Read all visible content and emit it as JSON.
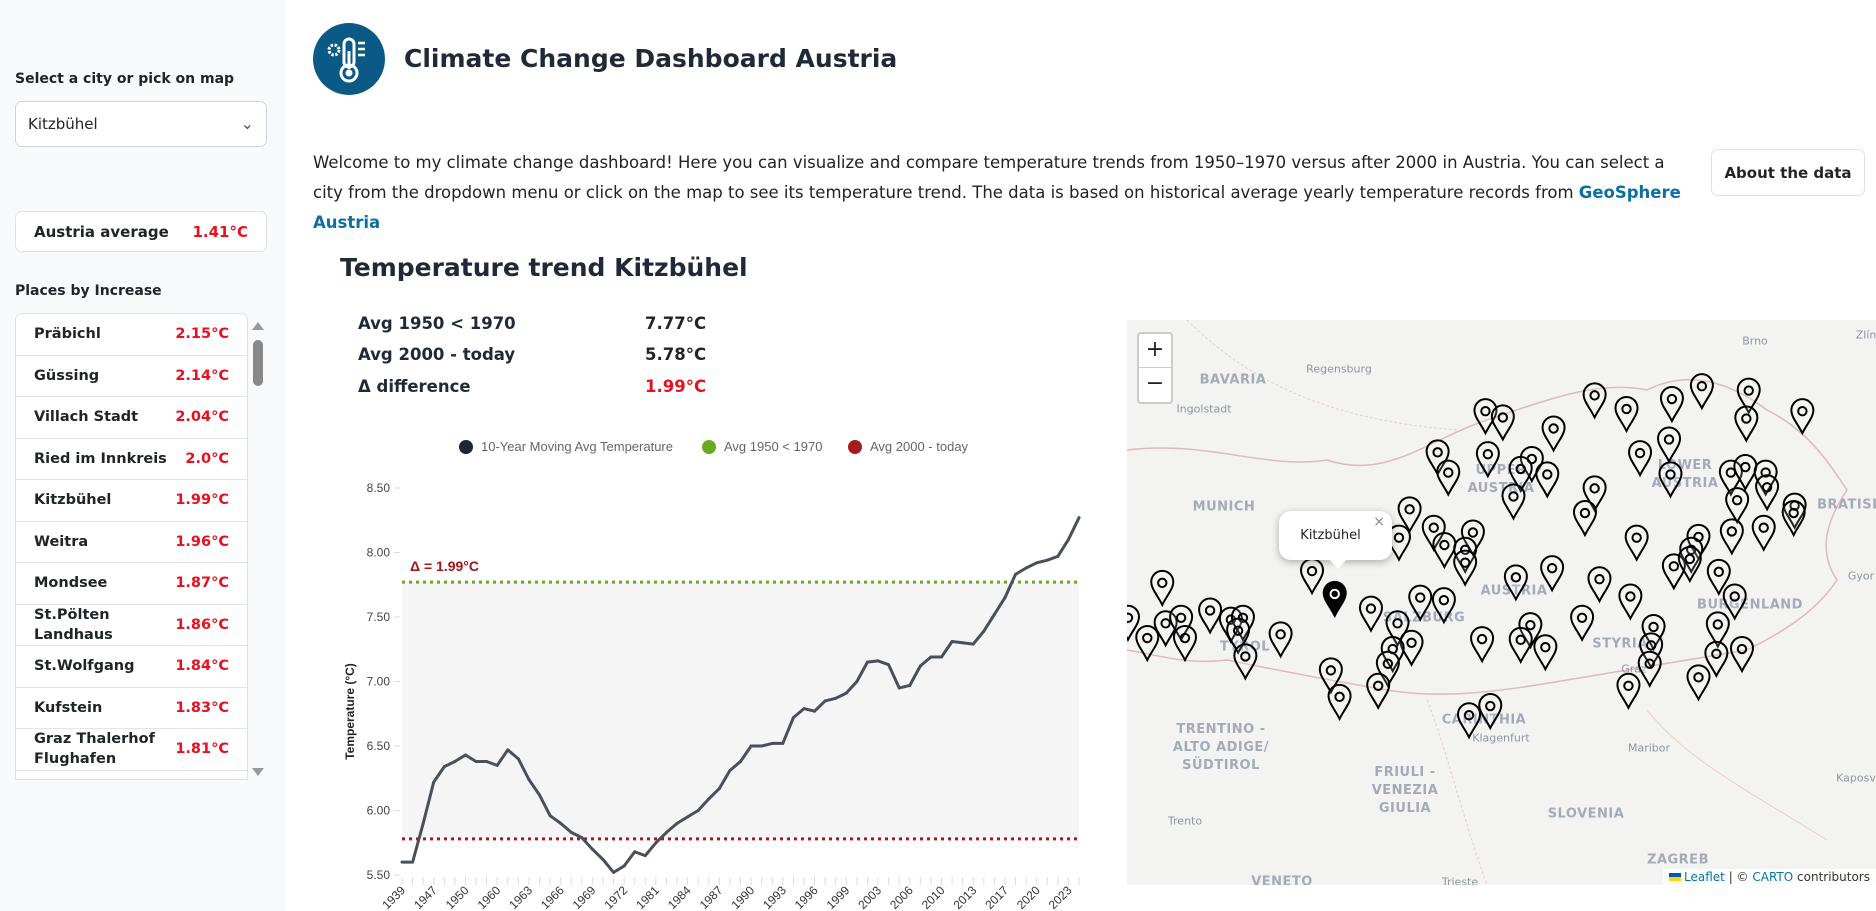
{
  "sidebar": {
    "select_label": "Select a city or pick on map",
    "selected_city": "Kitzbühel",
    "austria_avg_label": "Austria average",
    "austria_avg_value": "1.41°C",
    "places_title": "Places by Increase",
    "places": [
      {
        "name": "Präbichl",
        "value": "2.15°C"
      },
      {
        "name": "Güssing",
        "value": "2.14°C"
      },
      {
        "name": "Villach Stadt",
        "value": "2.04°C"
      },
      {
        "name": "Ried im Innkreis",
        "value": "2.0°C"
      },
      {
        "name": "Kitzbühel",
        "value": "1.99°C"
      },
      {
        "name": "Weitra",
        "value": "1.96°C"
      },
      {
        "name": "Mondsee",
        "value": "1.87°C"
      },
      {
        "name": "St.Pölten Landhaus",
        "value": "1.86°C"
      },
      {
        "name": "St.Wolfgang",
        "value": "1.84°C"
      },
      {
        "name": "Kufstein",
        "value": "1.83°C"
      },
      {
        "name": "Graz Thalerhof Flughafen",
        "value": "1.81°C"
      }
    ]
  },
  "header": {
    "title": "Climate Change Dashboard Austria",
    "description": "Welcome to my climate change dashboard! Here you can visualize and compare temperature trends from 1950–1970 versus after 2000 in Austria. You can select a city from the dropdown menu or click on the map to see its temperature trend. The data is based on historical average yearly temperature records from ",
    "link_text": "GeoSphere Austria",
    "about_button": "About the data",
    "logo_icon": "thermometer-gear-icon",
    "brand_color": "#0b5a85"
  },
  "trend": {
    "title": "Temperature trend Kitzbühel",
    "stats": [
      {
        "label": "Avg 1950 < 1970",
        "value": "7.77°C"
      },
      {
        "label": "Avg 2000 - today",
        "value": "5.78°C"
      },
      {
        "label": "Δ difference",
        "value": "1.99°C"
      }
    ]
  },
  "chart_data": {
    "type": "line",
    "title": "",
    "xlabel": "",
    "ylabel": "Temperature (°C)",
    "ylim": [
      5.5,
      8.5
    ],
    "y_ticks": [
      "5.50",
      "6.00",
      "6.50",
      "7.00",
      "7.50",
      "8.00",
      "8.50"
    ],
    "x_tick_labels": [
      "1939",
      "1947",
      "1950",
      "1960",
      "1963",
      "1966",
      "1969",
      "1972",
      "1981",
      "1984",
      "1987",
      "1990",
      "1993",
      "1996",
      "1999",
      "2003",
      "2006",
      "2010",
      "2013",
      "2017",
      "2020",
      "2023"
    ],
    "legend_position": "top",
    "annotation": "Δ = 1.99°C",
    "series": [
      {
        "name": "10-Year Moving Avg Temperature",
        "color": "#1f2633",
        "x": [
          1939,
          1945,
          1946,
          1947,
          1948,
          1949,
          1950,
          1958,
          1959,
          1960,
          1961,
          1962,
          1963,
          1964,
          1965,
          1966,
          1967,
          1968,
          1969,
          1970,
          1971,
          1972,
          1979,
          1980,
          1981,
          1982,
          1983,
          1984,
          1985,
          1986,
          1987,
          1988,
          1989,
          1990,
          1991,
          1992,
          1993,
          1994,
          1995,
          1996,
          1997,
          1998,
          1999,
          2001,
          2002,
          2003,
          2004,
          2005,
          2006,
          2008,
          2009,
          2010,
          2011,
          2012,
          2013,
          2015,
          2016,
          2017,
          2018,
          2019,
          2020,
          2021,
          2022,
          2023,
          2024
        ],
        "values": [
          5.6,
          5.6,
          5.9,
          6.22,
          6.34,
          6.38,
          6.43,
          6.38,
          6.38,
          6.35,
          6.47,
          6.4,
          6.24,
          6.12,
          5.96,
          5.9,
          5.83,
          5.79,
          5.7,
          5.62,
          5.52,
          5.57,
          5.68,
          5.65,
          5.75,
          5.83,
          5.9,
          5.95,
          6.0,
          6.09,
          6.17,
          6.31,
          6.38,
          6.5,
          6.5,
          6.52,
          6.52,
          6.72,
          6.79,
          6.77,
          6.85,
          6.87,
          6.91,
          7.0,
          7.15,
          7.16,
          7.13,
          6.95,
          6.97,
          7.12,
          7.19,
          7.19,
          7.31,
          7.3,
          7.29,
          7.39,
          7.52,
          7.65,
          7.83,
          7.88,
          7.92,
          7.94,
          7.97,
          8.1,
          8.27
        ]
      },
      {
        "name": "Avg 1950 < 1970",
        "color": "#6aaa1e",
        "value": 7.77
      },
      {
        "name": "Avg 2000 - today",
        "color": "#a31d1d",
        "value": 5.78
      }
    ]
  },
  "map": {
    "zoom_in": "+",
    "zoom_out": "−",
    "popup_text": "Kitzbühel",
    "popup_close": "×",
    "labels": [
      "BAVARIA",
      "Regensburg",
      "Ingolstadt",
      "MUNICH",
      "UPPER AUSTRIA",
      "LOWER AUSTRIA",
      "AUSTRIA",
      "SALZBURG",
      "TYROL",
      "STYRIA",
      "CARINTHIA",
      "Klagenfurt",
      "Graz",
      "BURGENLAND",
      "BRATISL",
      "Brno",
      "Zlín",
      "Gyor",
      "Maribor",
      "Kaposv",
      "TRENTINO - ALTO ADIGE/ SÜDTIROL",
      "FRIULI - VENEZIA GIULIA",
      "SLOVENIA",
      "ZAGREB",
      "Trento",
      "VENETO",
      "Trieste"
    ],
    "attribution_leaflet": "Leaflet",
    "attribution_sep": " | © ",
    "attribution_carto": "CARTO",
    "attribution_rest": " contributors"
  }
}
